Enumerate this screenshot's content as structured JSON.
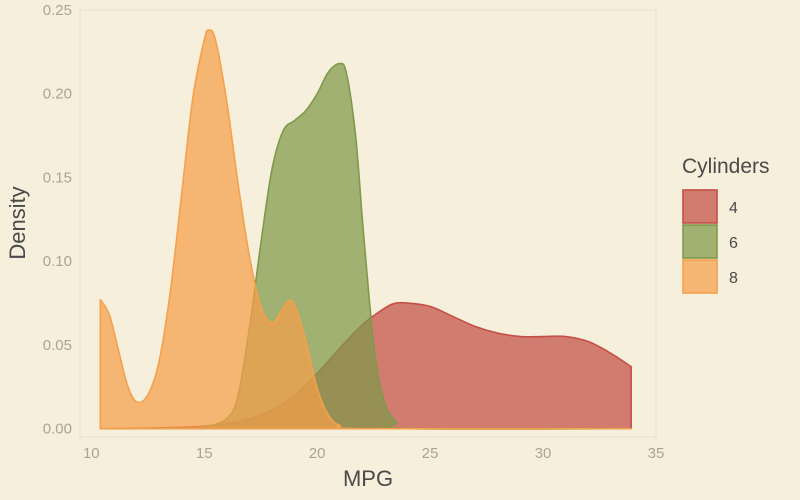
{
  "chart_data": {
    "type": "area",
    "chart_kind": "density",
    "xlabel": "MPG",
    "ylabel": "Density",
    "xlim": [
      9.5,
      35
    ],
    "ylim": [
      -0.005,
      0.25
    ],
    "xticks": [
      10,
      15,
      20,
      25,
      30,
      35
    ],
    "yticks": [
      0.0,
      0.05,
      0.1,
      0.15,
      0.2,
      0.25
    ],
    "ytick_labels": [
      "0.00",
      "0.05",
      "0.10",
      "0.15",
      "0.20",
      "0.25"
    ],
    "grid": false,
    "legend": {
      "title": "Cylinders",
      "position": "right"
    },
    "series": [
      {
        "name": "4",
        "color": "#c44f45",
        "points": [
          [
            10.4,
            0.0
          ],
          [
            12,
            0.0002
          ],
          [
            14,
            0.0008
          ],
          [
            15,
            0.0015
          ],
          [
            16,
            0.003
          ],
          [
            17,
            0.006
          ],
          [
            18,
            0.011
          ],
          [
            19,
            0.02
          ],
          [
            20,
            0.033
          ],
          [
            21,
            0.048
          ],
          [
            22,
            0.062
          ],
          [
            23,
            0.072
          ],
          [
            23.5,
            0.075
          ],
          [
            24,
            0.075
          ],
          [
            25,
            0.073
          ],
          [
            26,
            0.067
          ],
          [
            27,
            0.061
          ],
          [
            28,
            0.057
          ],
          [
            29,
            0.055
          ],
          [
            30,
            0.055
          ],
          [
            31,
            0.055
          ],
          [
            32,
            0.052
          ],
          [
            33,
            0.045
          ],
          [
            33.9,
            0.037
          ]
        ]
      },
      {
        "name": "6",
        "color": "#7f994a",
        "points": [
          [
            10.4,
            0.0
          ],
          [
            14,
            0.0
          ],
          [
            15,
            0.001
          ],
          [
            16,
            0.006
          ],
          [
            16.5,
            0.02
          ],
          [
            17,
            0.06
          ],
          [
            17.5,
            0.11
          ],
          [
            18,
            0.155
          ],
          [
            18.5,
            0.178
          ],
          [
            19,
            0.184
          ],
          [
            19.5,
            0.19
          ],
          [
            20,
            0.2
          ],
          [
            20.5,
            0.213
          ],
          [
            21,
            0.218
          ],
          [
            21.3,
            0.212
          ],
          [
            21.7,
            0.175
          ],
          [
            22,
            0.125
          ],
          [
            22.3,
            0.078
          ],
          [
            22.6,
            0.04
          ],
          [
            23,
            0.015
          ],
          [
            23.5,
            0.004
          ],
          [
            24,
            0.0
          ],
          [
            33.9,
            0.0
          ]
        ]
      },
      {
        "name": "8",
        "color": "#f5a04b",
        "points": [
          [
            10.4,
            0.077
          ],
          [
            10.8,
            0.068
          ],
          [
            11.2,
            0.047
          ],
          [
            11.6,
            0.026
          ],
          [
            12,
            0.016
          ],
          [
            12.5,
            0.02
          ],
          [
            13,
            0.04
          ],
          [
            13.5,
            0.082
          ],
          [
            14,
            0.14
          ],
          [
            14.5,
            0.198
          ],
          [
            15,
            0.232
          ],
          [
            15.2,
            0.238
          ],
          [
            15.5,
            0.232
          ],
          [
            16,
            0.195
          ],
          [
            16.5,
            0.146
          ],
          [
            17,
            0.103
          ],
          [
            17.5,
            0.073
          ],
          [
            18,
            0.063
          ],
          [
            18.4,
            0.07
          ],
          [
            18.7,
            0.076
          ],
          [
            19,
            0.074
          ],
          [
            19.5,
            0.052
          ],
          [
            20,
            0.024
          ],
          [
            20.5,
            0.008
          ],
          [
            21,
            0.002
          ],
          [
            22,
            0.0
          ],
          [
            33.9,
            0.0
          ]
        ]
      }
    ]
  }
}
